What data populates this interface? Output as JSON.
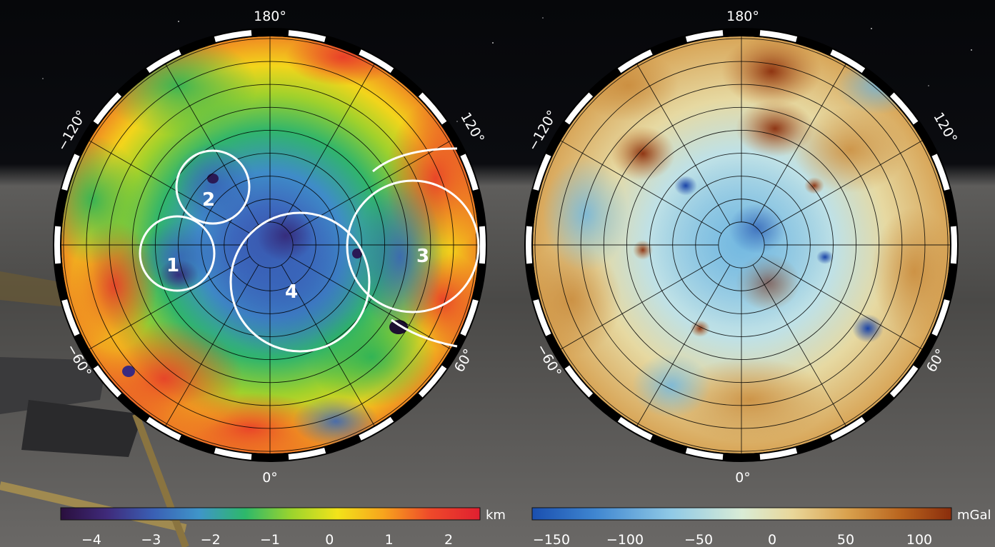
{
  "left_map": {
    "lon_labels": {
      "top": "180°",
      "upper_left": "−120°",
      "upper_right": "120°",
      "lower_left": "−60°",
      "lower_right": "60°",
      "bottom": "0°"
    },
    "basin_labels": [
      "1",
      "2",
      "3",
      "4"
    ],
    "colorbar": {
      "unit": "km",
      "ticks": [
        "−4",
        "−3",
        "−2",
        "−1",
        "0",
        "1",
        "2"
      ],
      "colors": [
        "#2a0f3d",
        "#3f2a7a",
        "#3a5fb4",
        "#3f95c9",
        "#2db86a",
        "#9bd42d",
        "#f2e31a",
        "#f7a41d",
        "#ee4a2a",
        "#e01f30"
      ]
    }
  },
  "right_map": {
    "lon_labels": {
      "top": "180°",
      "upper_left": "−120°",
      "upper_right": "120°",
      "lower_left": "−60°",
      "lower_right": "60°",
      "bottom": "0°"
    },
    "colorbar": {
      "unit": "mGal",
      "ticks": [
        "−150",
        "−100",
        "−50",
        "0",
        "50",
        "100"
      ],
      "colors": [
        "#1a4fb0",
        "#3f86d0",
        "#8fc9e6",
        "#d9ecd6",
        "#e9d79a",
        "#d9a24e",
        "#b9641e",
        "#8a2d0c"
      ]
    }
  }
}
